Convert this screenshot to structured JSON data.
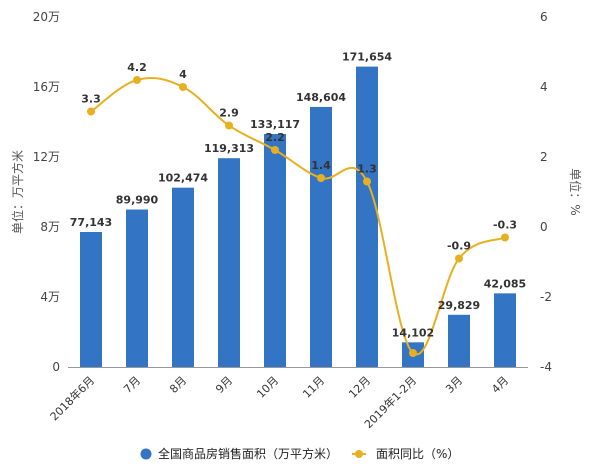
{
  "chart_data": {
    "type": "bar",
    "categories": [
      "2018年6月",
      "7月",
      "8月",
      "9月",
      "10月",
      "11月",
      "12月",
      "2019年1-2月",
      "3月",
      "4月"
    ],
    "series": [
      {
        "name": "全国商品房销售面积（万平方米）",
        "type": "bar",
        "axis": "left",
        "color": "#3474c4",
        "values": [
          77143,
          89990,
          102474,
          119313,
          133117,
          148604,
          171654,
          14102,
          29829,
          42085
        ],
        "labels": [
          "77,143",
          "89,990",
          "102,474",
          "119,313",
          "133,117",
          "148,604",
          "171,654",
          "14,102",
          "29,829",
          "42,085"
        ]
      },
      {
        "name": "面积同比（%）",
        "type": "line",
        "axis": "right",
        "color": "#e8b020",
        "values": [
          3.3,
          4.2,
          4.0,
          2.9,
          2.2,
          1.4,
          1.3,
          -3.6,
          -0.9,
          -0.3
        ],
        "labels": [
          "3.3",
          "4.2",
          "4",
          "2.9",
          "2.2",
          "1.4",
          "1.3",
          "",
          "-0.9",
          "-0.3"
        ]
      }
    ],
    "y_left": {
      "label": "单位：万平方米",
      "range": [
        0,
        200000
      ],
      "ticks": [
        0,
        40000,
        80000,
        120000,
        160000,
        200000
      ],
      "tick_labels": [
        "0",
        "4万",
        "8万",
        "12万",
        "16万",
        "20万"
      ]
    },
    "y_right": {
      "label": "单位：%",
      "range": [
        -4,
        6
      ],
      "ticks": [
        -4,
        -2,
        0,
        2,
        4,
        6
      ],
      "tick_labels": [
        "-4",
        "-2",
        "0",
        "2",
        "4",
        "6"
      ]
    },
    "legend": {
      "placement": "bottom",
      "items": [
        "全国商品房销售面积（万平方米）",
        "面积同比（%）"
      ]
    },
    "grid": false
  }
}
